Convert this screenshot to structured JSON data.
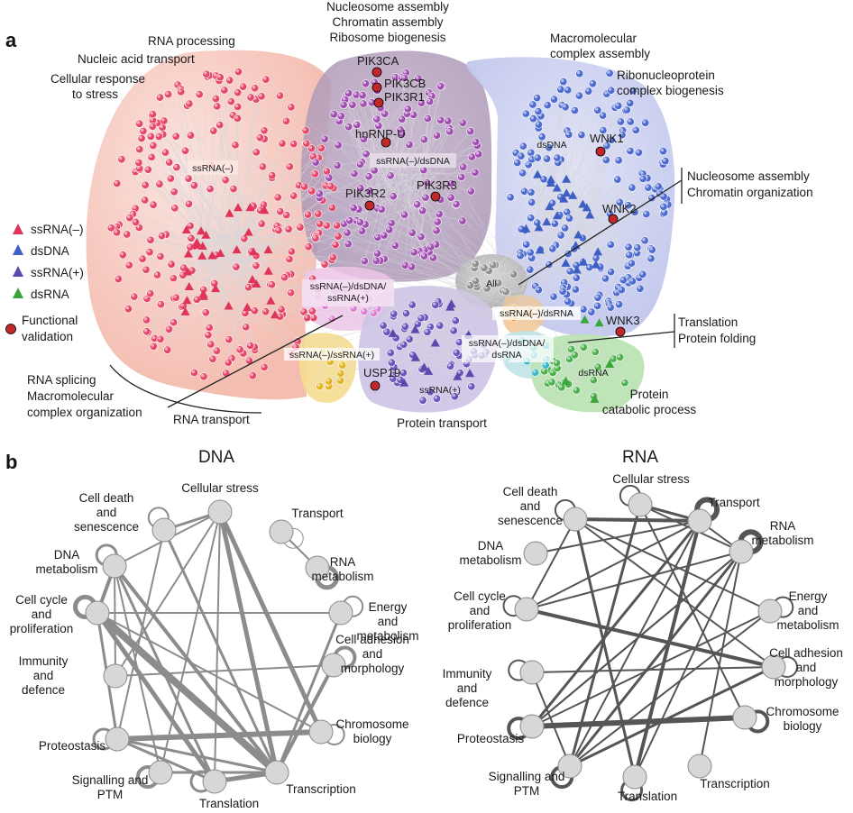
{
  "panel_a": {
    "letter": "a",
    "cluster_labels": {
      "ssrna_minus": "ssRNA(–)",
      "ssrna_dsdna": "ssRNA(–)/dsDNA",
      "dsdna": "dsDNA",
      "all": "All",
      "triple_1": "ssRNA(–)/dsDNA/",
      "triple_2": "ssRNA(+)",
      "ssrna_dsrna": "ssRNA(–)/dsRNA",
      "quad_1": "ssRNA(–)/dsDNA/",
      "quad_2": "dsRNA",
      "ssrna_plus_pair": "ssRNA(–)/ssRNA(+)",
      "ssrna_plus": "ssRNA(+)",
      "dsrna": "dsRNA"
    },
    "go_terms": {
      "top_1": "Nucleosome assembly",
      "top_2": "Chromatin assembly",
      "top_3": "Ribosome biogenesis",
      "rna_processing": "RNA processing",
      "nucleic_acid_transport": "Nucleic acid transport",
      "cellular_response_1": "Cellular response",
      "cellular_response_2": "to stress",
      "macromolecular_1": "Macromolecular",
      "macromolecular_2": "complex assembly",
      "ribonucleoprotein_1": "Ribonucleoprotein",
      "ribonucleoprotein_2": "complex biogenesis",
      "nucleosome_1": "Nucleosome assembly",
      "nucleosome_2": "Chromatin organization",
      "translation_1": "Translation",
      "translation_2": "Protein folding",
      "protein_catabolic_1": "Protein",
      "protein_catabolic_2": "catabolic process",
      "protein_transport": "Protein transport",
      "rna_transport": "RNA transport",
      "rna_splicing_1": "RNA splicing",
      "rna_splicing_2": "Macromolecular",
      "rna_splicing_3": "complex organization"
    },
    "genes": {
      "pik3ca": "PIK3CA",
      "pik3cb": "PIK3CB",
      "pik3r1": "PIK3R1",
      "hnrnpu": "hnRNP-U",
      "pik3r2": "PIK3R2",
      "pik3r3": "PIK3R3",
      "wnk1": "WNK1",
      "wnk2": "WNK2",
      "wnk3": "WNK3",
      "usp19": "USP19"
    },
    "legend": {
      "ssrna_minus": "ssRNA(–)",
      "dsdna": "dsDNA",
      "ssrna_plus": "ssRNA(+)",
      "dsrna": "dsRNA",
      "functional_1": "Functional",
      "functional_2": "validation"
    },
    "colors": {
      "ssrna_minus": "#e0335a",
      "dsdna": "#3d5fc4",
      "ssrna_plus": "#5a48ad",
      "dsrna": "#3aa63a",
      "validation": "#c0282a"
    }
  },
  "panel_b": {
    "letter": "b",
    "dna": {
      "title": "DNA",
      "nodes": [
        "Cellular stress",
        "Transport",
        "RNA metabolism",
        "Energy and metabolism",
        "Cell adhesion and morphology",
        "Chromosome biology",
        "Transcription",
        "Translation",
        "Signalling and PTM",
        "Proteostasis",
        "Immunity and defence",
        "Cell cycle and proliferation",
        "DNA metabolism",
        "Cell death and senescence"
      ]
    },
    "rna": {
      "title": "RNA",
      "nodes": [
        "Cellular stress",
        "Transport",
        "RNA metabolism",
        "Energy and metabolism",
        "Cell adhesion and morphology",
        "Chromosome biology",
        "Transcription",
        "Translation",
        "Signalling and PTM",
        "Proteostasis",
        "Immunity and defence",
        "Cell cycle and proliferation",
        "DNA metabolism",
        "Cell death and senescence"
      ]
    },
    "label_lines": {
      "cellular_stress": "Cellular stress",
      "transport": "Transport",
      "rna_metabolism_1": "RNA",
      "rna_metabolism_2": "metabolism",
      "energy_1": "Energy",
      "energy_2": "and",
      "energy_3": "metabolism",
      "adhesion_1": "Cell adhesion",
      "adhesion_2": "and",
      "adhesion_3": "morphology",
      "chromosome_1": "Chromosome",
      "chromosome_2": "biology",
      "transcription": "Transcription",
      "translation": "Translation",
      "signalling_1": "Signalling and",
      "signalling_2": "PTM",
      "proteostasis": "Proteostasis",
      "immunity_1": "Immunity",
      "immunity_2": "and",
      "immunity_3": "defence",
      "cellcycle_1": "Cell cycle",
      "cellcycle_2": "and",
      "cellcycle_3": "proliferation",
      "dna_metabolism_1": "DNA",
      "dna_metabolism_2": "metabolism",
      "death_1": "Cell death",
      "death_2": "and",
      "death_3": "senescence"
    },
    "colors": {
      "dna_edge": "#8c8c8c",
      "rna_edge": "#555555",
      "node_fill": "#d7d7d7",
      "node_stroke": "#8a8a8a"
    }
  }
}
